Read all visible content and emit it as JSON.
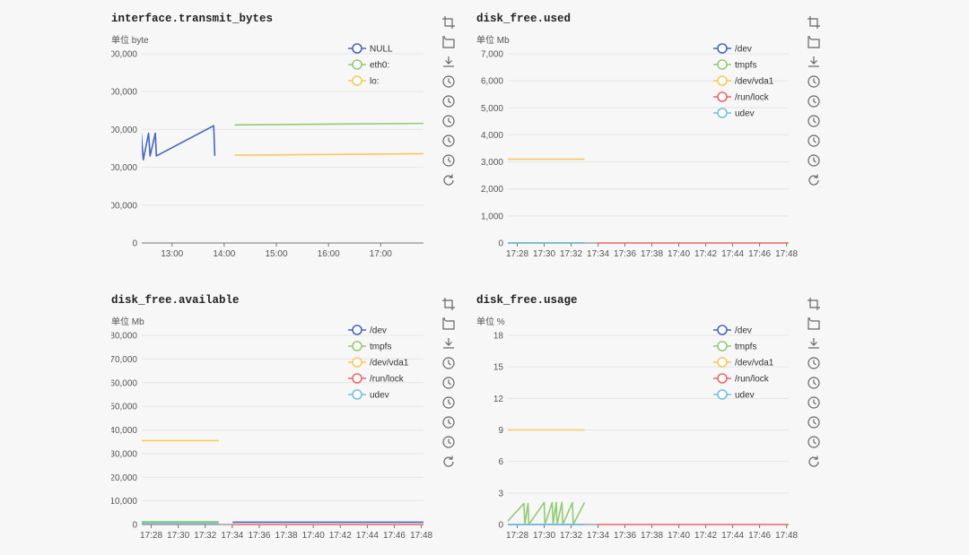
{
  "panels": [
    {
      "id": "transmit",
      "title": "interface.transmit_bytes",
      "unit": "单位 byte",
      "chart_data": {
        "type": "line",
        "x_axis": "time",
        "x_ticks": [
          "13:00",
          "14:00",
          "15:00",
          "16:00",
          "17:00"
        ],
        "y_ticks": [
          "0",
          "00,000",
          "00,000",
          "00,000",
          "00,000",
          "00,000"
        ],
        "ylim": [
          0,
          500
        ],
        "legend_position": "top-right",
        "series": [
          {
            "name": "NULL",
            "color": "#4566c2",
            "points": [
              [
                12.4,
                220
              ],
              [
                12.41,
                290
              ],
              [
                12.45,
                220
              ],
              [
                12.55,
                290
              ],
              [
                12.58,
                230
              ],
              [
                12.68,
                290
              ],
              [
                12.7,
                230
              ],
              [
                13.8,
                310
              ],
              [
                13.82,
                230
              ]
            ]
          },
          {
            "name": "eth0:",
            "color": "#91cc75",
            "points": [
              [
                14.2,
                312
              ],
              [
                17.9,
                316
              ]
            ]
          },
          {
            "name": "lo:",
            "color": "#fac858",
            "points": [
              [
                14.2,
                232
              ],
              [
                17.9,
                236
              ]
            ]
          }
        ]
      }
    },
    {
      "id": "used",
      "title": "disk_free.used",
      "unit": "单位 Mb",
      "chart_data": {
        "type": "line",
        "x_axis": "time",
        "x_ticks": [
          "17:28",
          "17:30",
          "17:32",
          "17:34",
          "17:36",
          "17:38",
          "17:40",
          "17:42",
          "17:44",
          "17:46",
          "17:48"
        ],
        "y_ticks": [
          "0",
          "1,000",
          "2,000",
          "3,000",
          "4,000",
          "5,000",
          "6,000",
          "7,000"
        ],
        "ylim": [
          0,
          7000
        ],
        "legend_position": "top-right",
        "series": [
          {
            "name": "/dev",
            "color": "#4566c2",
            "points": [
              [
                17.45,
                0
              ],
              [
                17.55,
                0
              ]
            ]
          },
          {
            "name": "tmpfs",
            "color": "#91cc75",
            "points": [
              [
                17.45,
                0
              ],
              [
                17.55,
                0
              ]
            ]
          },
          {
            "name": "/dev/vda1",
            "color": "#fac858",
            "points": [
              [
                17.45,
                3100
              ],
              [
                17.55,
                3100
              ]
            ]
          },
          {
            "name": "/run/lock",
            "color": "#ee6666",
            "points": [
              [
                17.567,
                0
              ],
              [
                17.82,
                0
              ]
            ]
          },
          {
            "name": "udev",
            "color": "#73c0de",
            "points": [
              [
                17.45,
                0
              ],
              [
                17.55,
                0
              ]
            ]
          }
        ]
      }
    },
    {
      "id": "available",
      "title": "disk_free.available",
      "unit": "单位 Mb",
      "chart_data": {
        "type": "line",
        "x_axis": "time",
        "x_ticks": [
          "17:28",
          "17:30",
          "17:32",
          "17:34",
          "17:36",
          "17:38",
          "17:40",
          "17:42",
          "17:44",
          "17:46",
          "17:48"
        ],
        "y_ticks": [
          "0",
          "10,000",
          "20,000",
          "30,000",
          "40,000",
          "50,000",
          "60,000",
          "70,000",
          "80,000"
        ],
        "ylim": [
          0,
          80000
        ],
        "legend_position": "top-right",
        "series": [
          {
            "name": "/dev",
            "color": "#4566c2",
            "points": [
              [
                17.567,
                1000
              ],
              [
                17.82,
                1000
              ]
            ]
          },
          {
            "name": "tmpfs",
            "color": "#91cc75",
            "points": [
              [
                17.45,
                1200
              ],
              [
                17.55,
                1200
              ]
            ]
          },
          {
            "name": "/dev/vda1",
            "color": "#fac858",
            "points": [
              [
                17.45,
                35500
              ],
              [
                17.55,
                35500
              ]
            ]
          },
          {
            "name": "/run/lock",
            "color": "#ee6666",
            "points": [
              [
                17.567,
                0
              ],
              [
                17.82,
                0
              ]
            ]
          },
          {
            "name": "udev",
            "color": "#73c0de",
            "points": [
              [
                17.45,
                600
              ],
              [
                17.55,
                600
              ]
            ]
          }
        ]
      }
    },
    {
      "id": "usage",
      "title": "disk_free.usage",
      "unit": "单位 %",
      "chart_data": {
        "type": "line",
        "x_axis": "time",
        "x_ticks": [
          "17:28",
          "17:30",
          "17:32",
          "17:34",
          "17:36",
          "17:38",
          "17:40",
          "17:42",
          "17:44",
          "17:46",
          "17:48"
        ],
        "y_ticks": [
          "0",
          "3",
          "6",
          "9",
          "12",
          "15",
          "18"
        ],
        "ylim": [
          0,
          18
        ],
        "legend_position": "top-right",
        "series": [
          {
            "name": "/dev",
            "color": "#4566c2",
            "points": [
              [
                17.45,
                0
              ],
              [
                17.55,
                0
              ]
            ]
          },
          {
            "name": "tmpfs",
            "color": "#91cc75",
            "points": [
              [
                17.45,
                2.0
              ],
              [
                17.451,
                0
              ],
              [
                17.475,
                2.0
              ],
              [
                17.476,
                0
              ],
              [
                17.48,
                2.0
              ],
              [
                17.481,
                0
              ],
              [
                17.5,
                2.1
              ],
              [
                17.501,
                0
              ],
              [
                17.51,
                2.1
              ],
              [
                17.511,
                0
              ],
              [
                17.515,
                2.1
              ],
              [
                17.516,
                0
              ],
              [
                17.522,
                2.1
              ],
              [
                17.523,
                0
              ],
              [
                17.535,
                2.1
              ],
              [
                17.536,
                0
              ],
              [
                17.55,
                2.1
              ]
            ]
          },
          {
            "name": "/dev/vda1",
            "color": "#fac858",
            "points": [
              [
                17.45,
                9
              ],
              [
                17.55,
                9
              ]
            ]
          },
          {
            "name": "/run/lock",
            "color": "#ee6666",
            "points": [
              [
                17.567,
                0
              ],
              [
                17.82,
                0
              ]
            ]
          },
          {
            "name": "udev",
            "color": "#73c0de",
            "points": [
              [
                17.45,
                0
              ],
              [
                17.55,
                0
              ]
            ]
          }
        ]
      }
    }
  ],
  "toolbox_icons": [
    "crop-icon",
    "undo-crop-icon",
    "download-icon",
    "clock-icon",
    "clock-icon",
    "clock-icon",
    "clock-icon",
    "clock-icon",
    "refresh-icon"
  ]
}
